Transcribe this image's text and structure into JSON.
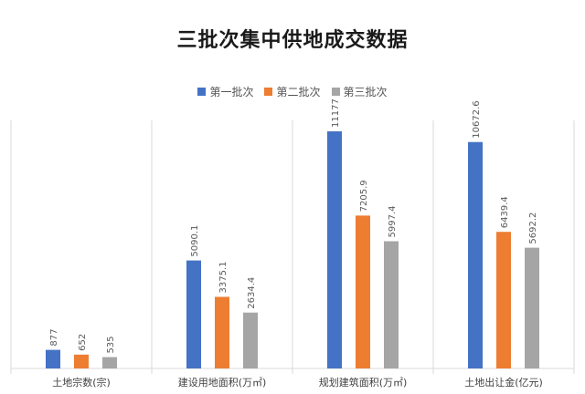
{
  "chart_data": {
    "type": "bar",
    "title": "三批次集中供地成交数据",
    "categories": [
      "土地宗数(宗)",
      "建设用地面积(万㎡)",
      "规划建筑面积(万㎡)",
      "土地出让金(亿元)"
    ],
    "series": [
      {
        "name": "第一批次",
        "color": "#4472C4",
        "values": [
          877,
          5090.1,
          11177,
          10672.6
        ],
        "labels": [
          "877",
          "5090.1",
          "11177",
          "10672.6"
        ]
      },
      {
        "name": "第二批次",
        "color": "#ED7D31",
        "values": [
          652,
          3375.1,
          7205.9,
          6439.4
        ],
        "labels": [
          "652",
          "3375.1",
          "7205.9",
          "6439.4"
        ]
      },
      {
        "name": "第三批次",
        "color": "#A5A5A5",
        "values": [
          535,
          2634.4,
          5997.4,
          5692.2
        ],
        "labels": [
          "535",
          "2634.4",
          "5997.4",
          "5692.2"
        ]
      }
    ],
    "ylim": [
      0,
      12000
    ],
    "grid": false,
    "legend_position": "top"
  }
}
